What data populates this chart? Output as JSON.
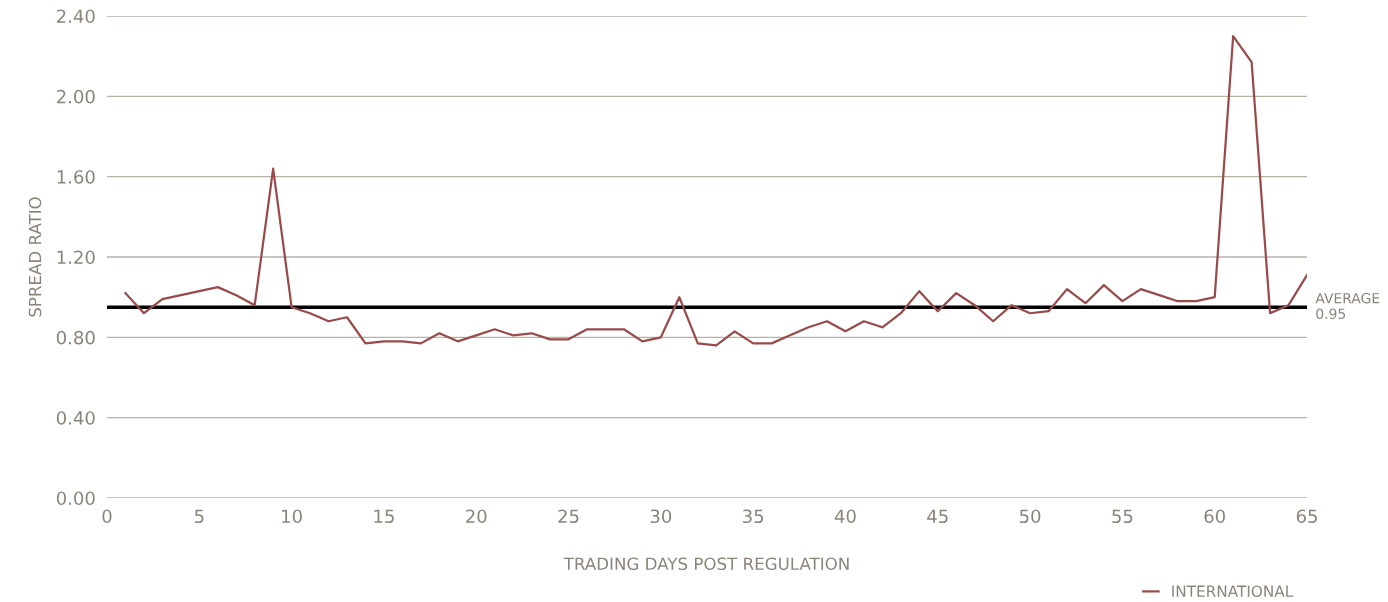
{
  "chart_data": {
    "type": "line",
    "xlabel": "TRADING DAYS POST REGULATION",
    "ylabel": "SPREAD RATIO",
    "x": [
      1,
      2,
      3,
      4,
      5,
      6,
      7,
      8,
      9,
      10,
      11,
      12,
      13,
      14,
      15,
      16,
      17,
      18,
      19,
      20,
      21,
      22,
      23,
      24,
      25,
      26,
      27,
      28,
      29,
      30,
      31,
      32,
      33,
      34,
      35,
      36,
      37,
      38,
      39,
      40,
      41,
      42,
      43,
      44,
      45,
      46,
      47,
      48,
      49,
      50,
      51,
      52,
      53,
      54,
      55,
      56,
      57,
      58,
      59,
      60,
      61,
      62,
      63,
      64,
      65
    ],
    "series": [
      {
        "name": "INTERNATIONAL",
        "color": "#9b4a4a",
        "values": [
          1.02,
          0.92,
          0.99,
          1.01,
          1.03,
          1.05,
          1.01,
          0.96,
          1.64,
          0.95,
          0.92,
          0.88,
          0.9,
          0.77,
          0.78,
          0.78,
          0.77,
          0.82,
          0.78,
          0.81,
          0.84,
          0.81,
          0.82,
          0.79,
          0.79,
          0.84,
          0.84,
          0.84,
          0.78,
          0.8,
          1.0,
          0.77,
          0.76,
          0.83,
          0.77,
          0.77,
          0.81,
          0.85,
          0.88,
          0.83,
          0.88,
          0.85,
          0.92,
          1.03,
          0.93,
          1.02,
          0.96,
          0.88,
          0.96,
          0.92,
          0.93,
          1.04,
          0.97,
          1.06,
          0.98,
          1.04,
          1.01,
          0.98,
          0.98,
          1.0,
          2.3,
          2.17,
          0.92,
          0.96,
          1.11
        ]
      }
    ],
    "xlim": [
      0,
      65
    ],
    "xticks": [
      0,
      5,
      10,
      15,
      20,
      25,
      30,
      35,
      40,
      45,
      50,
      55,
      60,
      65
    ],
    "ylim": [
      0,
      2.4
    ],
    "yticks": [
      {
        "value": 0,
        "label": "0.00"
      },
      {
        "value": 0.4,
        "label": "0.40"
      },
      {
        "value": 0.8,
        "label": "0.80"
      },
      {
        "value": 1.2,
        "label": "1.20"
      },
      {
        "value": 1.6,
        "label": "1.60"
      },
      {
        "value": 2.0,
        "label": "2.00"
      },
      {
        "value": 2.4,
        "label": "2.40"
      }
    ],
    "ref_lines": [
      {
        "axis": "y",
        "value": 0.95,
        "label": "AVERAGE\n0.95",
        "color": "#000000"
      }
    ],
    "grid": "y",
    "legend": "bottom right",
    "marker": "none",
    "line_style": "solid"
  }
}
